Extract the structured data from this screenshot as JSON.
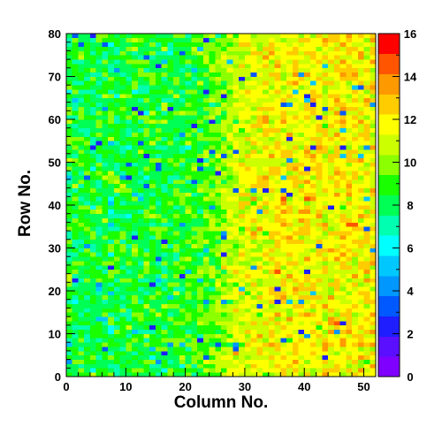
{
  "chart_data": {
    "type": "heatmap",
    "title": "",
    "xlabel": "Column No.",
    "ylabel": "Row No.",
    "xlim": [
      0,
      52
    ],
    "ylim": [
      0,
      80
    ],
    "nx": 52,
    "ny": 80,
    "x_ticks": [
      0,
      10,
      20,
      30,
      40,
      50
    ],
    "y_ticks": [
      0,
      10,
      20,
      30,
      40,
      50,
      60,
      70,
      80
    ],
    "colorbar": {
      "range": [
        0,
        16
      ],
      "ticks": [
        0,
        2,
        4,
        6,
        8,
        10,
        12,
        14,
        16
      ],
      "palette": [
        "#7f00ff",
        "#5a0fff",
        "#1e1eff",
        "#0058ff",
        "#0097ff",
        "#00c8ff",
        "#00ffff",
        "#00ffb0",
        "#00ff55",
        "#19ff00",
        "#8cff00",
        "#ccff00",
        "#ffff00",
        "#ffcc00",
        "#ff9900",
        "#ff5500",
        "#ff0000"
      ]
    },
    "trend": {
      "description": "Per-pixel hit counts; values mostly 8-10 on the left half (columns 0-26) rising to 12-15 on the right half (columns 27-52), with scattered low values (2-6) throughout.",
      "left_mean": 9.0,
      "right_mean": 12.5,
      "transition_column": 26,
      "seed": 1
    }
  }
}
